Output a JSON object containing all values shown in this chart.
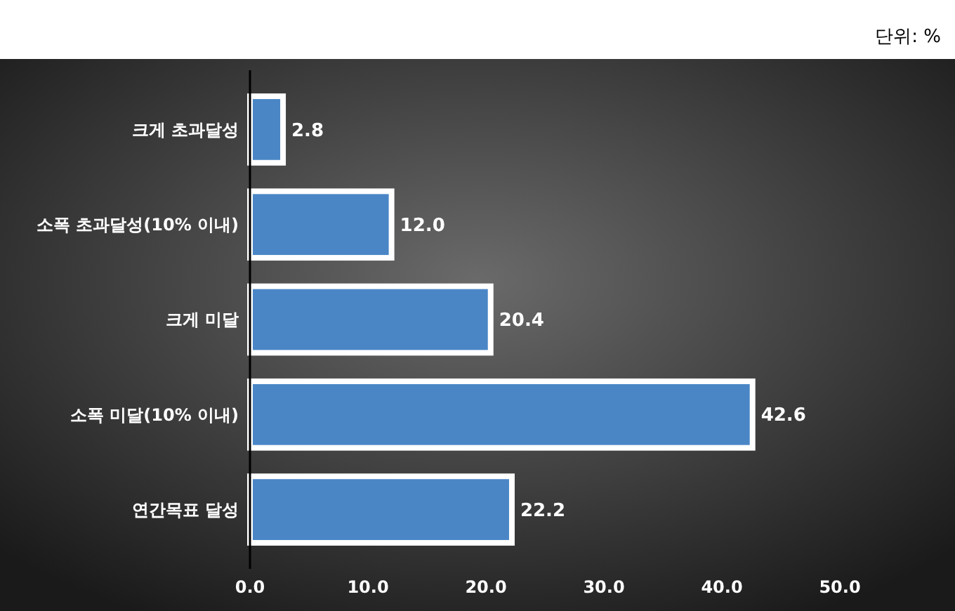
{
  "chart_data": {
    "type": "bar",
    "orientation": "horizontal",
    "categories": [
      "크게 초과달성",
      "소폭 초과달성(10% 이내)",
      "크게 미달",
      "소폭 미달(10% 이내)",
      "연간목표 달성"
    ],
    "values": [
      2.8,
      12.0,
      20.4,
      42.6,
      22.2
    ],
    "value_labels": [
      "2.8",
      "12.0",
      "20.4",
      "42.6",
      "22.2"
    ],
    "color": "#4a86c6",
    "xlim": [
      0,
      50
    ],
    "xticks": [
      {
        "value": 0,
        "label": "0.0"
      },
      {
        "value": 10,
        "label": "10.0"
      },
      {
        "value": 20,
        "label": "20.0"
      },
      {
        "value": 30,
        "label": "30.0"
      },
      {
        "value": 40,
        "label": "40.0"
      },
      {
        "value": 50,
        "label": "50.0"
      }
    ],
    "annotations": [
      "단위: %"
    ],
    "grid": false
  }
}
